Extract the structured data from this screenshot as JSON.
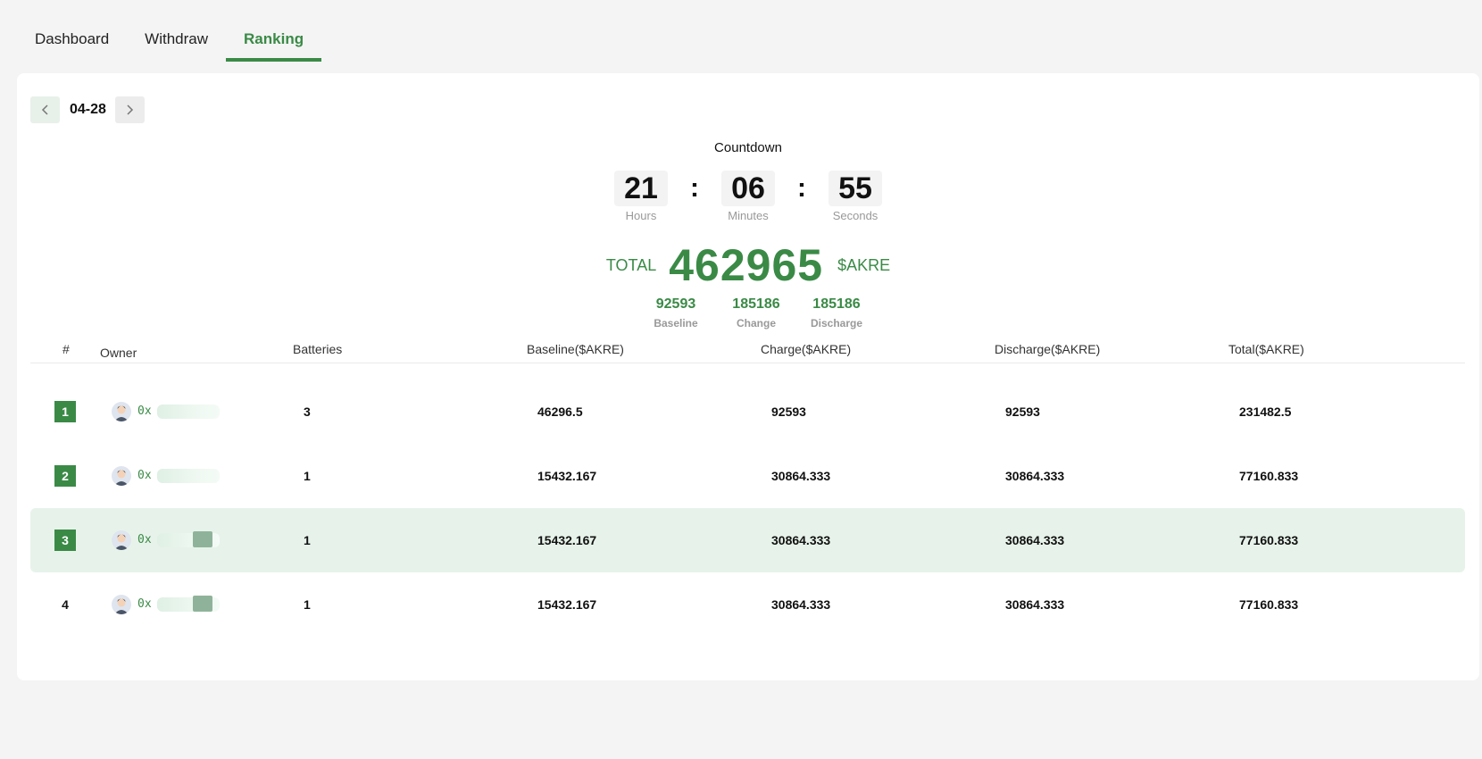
{
  "tabs": [
    {
      "label": "Dashboard",
      "active": false
    },
    {
      "label": "Withdraw",
      "active": false
    },
    {
      "label": "Ranking",
      "active": true
    }
  ],
  "date_nav": {
    "date": "04-28",
    "prev_icon": "chevron-left-icon",
    "next_icon": "chevron-right-icon"
  },
  "countdown": {
    "title": "Countdown",
    "hours": "21",
    "hours_label": "Hours",
    "minutes": "06",
    "minutes_label": "Minutes",
    "seconds": "55",
    "seconds_label": "Seconds",
    "separator": ":"
  },
  "total": {
    "label": "TOTAL",
    "value": "462965",
    "unit": "$AKRE",
    "baseline": "92593",
    "baseline_label": "Baseline",
    "change": "185186",
    "change_label": "Change",
    "discharge": "185186",
    "discharge_label": "Discharge"
  },
  "table": {
    "headers": {
      "rank": "#",
      "owner": "Owner",
      "batteries": "Batteries",
      "baseline": "Baseline($AKRE)",
      "charge": "Charge($AKRE)",
      "discharge": "Discharge($AKRE)",
      "total": "Total($AKRE)"
    },
    "rows": [
      {
        "rank": "1",
        "owner": "0x",
        "batteries": "3",
        "baseline": "46296.5",
        "charge": "92593",
        "discharge": "92593",
        "total": "231482.5"
      },
      {
        "rank": "2",
        "owner": "0x",
        "batteries": "1",
        "baseline": "15432.167",
        "charge": "30864.333",
        "discharge": "30864.333",
        "total": "77160.833"
      },
      {
        "rank": "3",
        "owner": "0x",
        "batteries": "1",
        "baseline": "15432.167",
        "charge": "30864.333",
        "discharge": "30864.333",
        "total": "77160.833"
      },
      {
        "rank": "4",
        "owner": "0x",
        "batteries": "1",
        "baseline": "15432.167",
        "charge": "30864.333",
        "discharge": "30864.333",
        "total": "77160.833"
      }
    ]
  },
  "colors": {
    "accent": "#3a8a46",
    "highlight_row": "#e7f3ea"
  }
}
